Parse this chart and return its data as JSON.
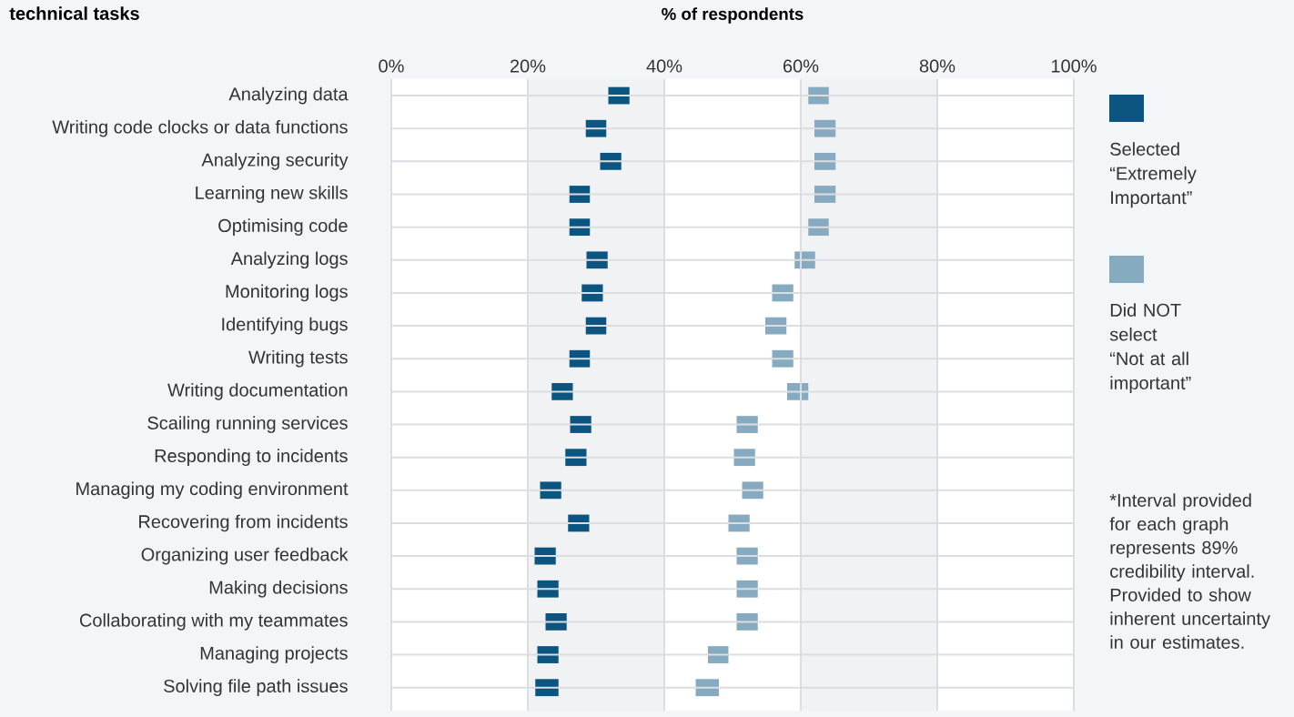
{
  "chart_data": {
    "type": "bar",
    "orientation": "horizontal",
    "title": "technical tasks",
    "xlabel": "% of respondents",
    "categories": [
      "Analyzing data",
      "Writing code clocks or data functions",
      "Analyzing security",
      "Learning new skills",
      "Optimising code",
      "Analyzing logs",
      "Monitoring logs",
      "Identifying bugs",
      "Writing tests",
      "Writing documentation",
      "Scailing running services",
      "Responding to incidents",
      "Managing my coding environment",
      "Recovering from incidents",
      "Organizing user feedback",
      "Making decisions",
      "Collaborating with my teammates",
      "Managing projects",
      "Solving file path issues"
    ],
    "series": [
      {
        "name": "Selected “Extremely Important”",
        "color": "#0b5580",
        "base": [
          31.8,
          28.5,
          30.6,
          26.1,
          26.1,
          28.6,
          27.9,
          28.5,
          26.1,
          23.5,
          26.2,
          25.5,
          21.8,
          25.9,
          21.0,
          21.4,
          22.6,
          21.4,
          21.1
        ],
        "values": [
          3.1,
          3.0,
          3.1,
          3.0,
          3.0,
          3.1,
          3.1,
          3.0,
          3.0,
          3.1,
          3.1,
          3.1,
          3.1,
          3.1,
          3.1,
          3.1,
          3.1,
          3.1,
          3.4
        ]
      },
      {
        "name": "Did NOT select “Not at all important”",
        "color": "#86aac0",
        "base": [
          61.1,
          62.0,
          62.0,
          62.0,
          61.1,
          59.1,
          55.8,
          54.8,
          55.8,
          58.0,
          50.6,
          50.2,
          51.4,
          49.4,
          50.6,
          50.6,
          50.6,
          46.4,
          44.6
        ],
        "values": [
          3.0,
          3.1,
          3.1,
          3.1,
          3.0,
          3.0,
          3.1,
          3.1,
          3.1,
          3.1,
          3.1,
          3.1,
          3.1,
          3.1,
          3.1,
          3.1,
          3.1,
          3.0,
          3.4
        ]
      }
    ],
    "xlim": [
      0,
      100
    ],
    "xticks": [
      {
        "value": 0,
        "label": "0%"
      },
      {
        "value": 20,
        "label": "20%"
      },
      {
        "value": 40,
        "label": "40%"
      },
      {
        "value": 60,
        "label": "60%"
      },
      {
        "value": 80,
        "label": "80%"
      },
      {
        "value": 100,
        "label": "100%"
      }
    ],
    "grid": true,
    "legend": "right",
    "bands": [
      {
        "axis": "x",
        "from": 20,
        "to": 40,
        "color": "#f1f2f4"
      },
      {
        "axis": "x",
        "from": 60,
        "to": 80,
        "color": "#f1f2f4"
      }
    ],
    "annotations": [
      "*Interval provided for each graph represents 89% credibility interval. Provided to show inherent uncertainty in our estimates."
    ]
  }
}
